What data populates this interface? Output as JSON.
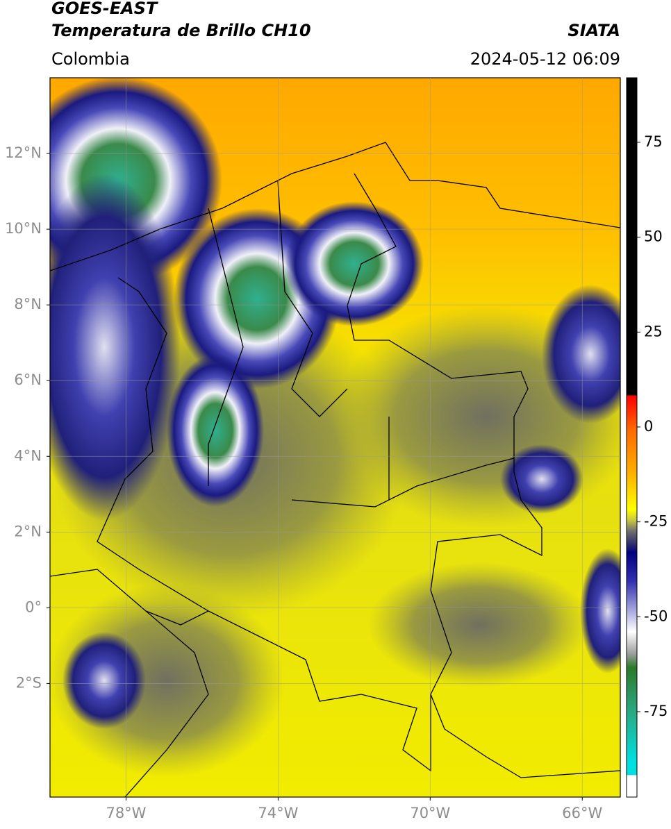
{
  "header": {
    "title": "GOES-EAST",
    "subtitle": "Temperatura de Brillo CH10",
    "source": "SIATA",
    "region": "Colombia",
    "timestamp": "2024-05-12 06:09"
  },
  "map": {
    "xlim": [
      -80,
      -65
    ],
    "ylim": [
      -5,
      14
    ],
    "xticks": [
      {
        "value": -78,
        "label": "78°W"
      },
      {
        "value": -74,
        "label": "74°W"
      },
      {
        "value": -70,
        "label": "70°W"
      },
      {
        "value": -66,
        "label": "66°W"
      }
    ],
    "yticks": [
      {
        "value": 12,
        "label": "12°N"
      },
      {
        "value": 10,
        "label": "10°N"
      },
      {
        "value": 8,
        "label": "8°N"
      },
      {
        "value": 6,
        "label": "6°N"
      },
      {
        "value": 4,
        "label": "4°N"
      },
      {
        "value": 2,
        "label": "2°N"
      },
      {
        "value": 0,
        "label": "0°"
      },
      {
        "value": -2,
        "label": "2°S"
      }
    ],
    "grid": true
  },
  "colorbar": {
    "lim": [
      -97.5,
      92
    ],
    "ticks": [
      75,
      50,
      25,
      0,
      -25,
      -50,
      -75
    ]
  }
}
